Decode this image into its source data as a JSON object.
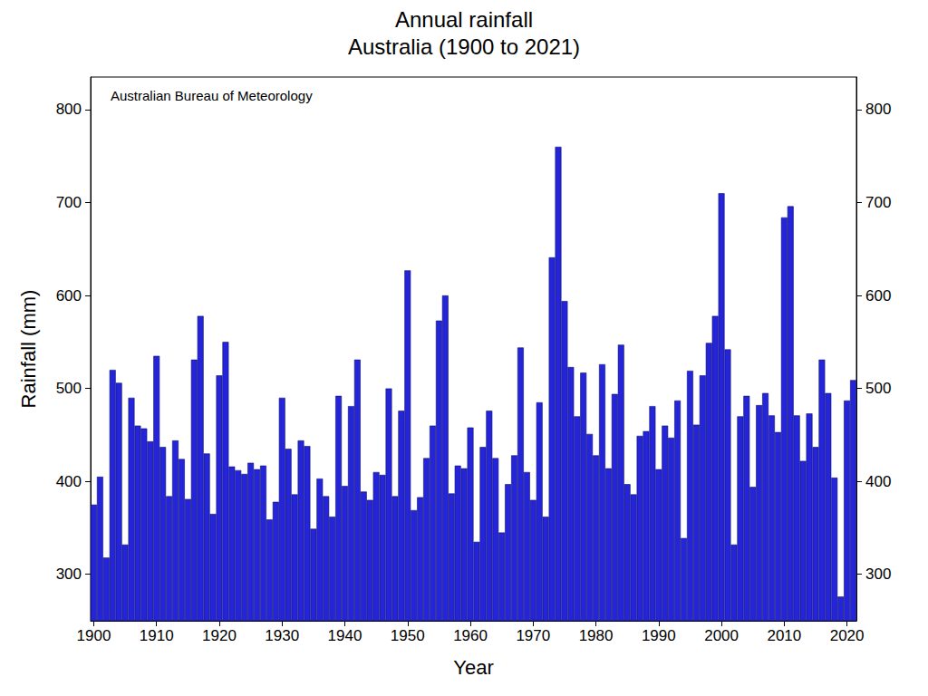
{
  "chart_data": {
    "type": "bar",
    "title": "Annual rainfall",
    "subtitle": "Australia (1900 to 2021)",
    "annotation": "Australian Bureau of Meteorology",
    "x_label": "Year",
    "y_label": "Rainfall (mm)",
    "categories": [
      "1900",
      null,
      null,
      null,
      null,
      null,
      null,
      null,
      null,
      null,
      "1910",
      null,
      null,
      null,
      null,
      null,
      null,
      null,
      null,
      null,
      "1920",
      null,
      null,
      null,
      null,
      null,
      null,
      null,
      null,
      null,
      "1930",
      null,
      null,
      null,
      null,
      null,
      null,
      null,
      null,
      null,
      "1940",
      null,
      null,
      null,
      null,
      null,
      null,
      null,
      null,
      null,
      "1950",
      null,
      null,
      null,
      null,
      null,
      null,
      null,
      null,
      null,
      "1960",
      null,
      null,
      null,
      null,
      null,
      null,
      null,
      null,
      null,
      "1970",
      null,
      null,
      null,
      null,
      null,
      null,
      null,
      null,
      null,
      "1980",
      null,
      null,
      null,
      null,
      null,
      null,
      null,
      null,
      null,
      "1990",
      null,
      null,
      null,
      null,
      null,
      null,
      null,
      null,
      null,
      "2000",
      null,
      null,
      null,
      null,
      null,
      null,
      null,
      null,
      null,
      "2010",
      null,
      null,
      null,
      null,
      null,
      null,
      null,
      null,
      null,
      "2020",
      null
    ],
    "values": [
      375,
      405,
      318,
      520,
      506,
      332,
      490,
      460,
      457,
      443,
      535,
      437,
      384,
      444,
      424,
      381,
      531,
      578,
      430,
      365,
      514,
      550,
      416,
      412,
      408,
      420,
      413,
      417,
      359,
      378,
      490,
      435,
      386,
      444,
      438,
      349,
      403,
      384,
      362,
      492,
      395,
      481,
      531,
      389,
      380,
      410,
      407,
      500,
      384,
      476,
      627,
      369,
      383,
      425,
      460,
      573,
      600,
      387,
      417,
      414,
      458,
      335,
      437,
      476,
      425,
      345,
      397,
      428,
      544,
      410,
      380,
      485,
      362,
      641,
      760,
      594,
      523,
      470,
      517,
      451,
      428,
      526,
      414,
      494,
      547,
      397,
      386,
      449,
      454,
      481,
      413,
      460,
      447,
      487,
      339,
      519,
      461,
      514,
      549,
      578,
      710,
      542,
      332,
      470,
      492,
      394,
      482,
      495,
      471,
      453,
      684,
      696,
      471,
      422,
      473,
      437,
      531,
      495,
      404,
      276,
      487,
      509
    ],
    "color": "#2424d8",
    "ylim": [
      250,
      835
    ],
    "yticks": [
      300,
      400,
      500,
      600,
      700,
      800
    ],
    "grid": false
  }
}
